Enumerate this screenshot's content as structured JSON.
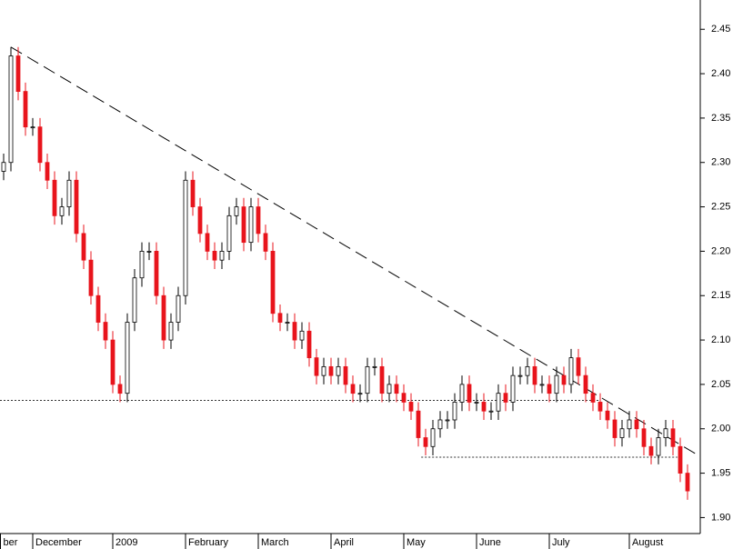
{
  "chart_data": {
    "type": "candlestick",
    "open": [
      2.29,
      2.3,
      2.42,
      2.38,
      2.34,
      2.34,
      2.3,
      2.28,
      2.24,
      2.25,
      2.28,
      2.22,
      2.19,
      2.15,
      2.12,
      2.1,
      2.05,
      2.04,
      2.12,
      2.17,
      2.2,
      2.2,
      2.15,
      2.1,
      2.12,
      2.15,
      2.28,
      2.25,
      2.22,
      2.2,
      2.19,
      2.2,
      2.24,
      2.25,
      2.21,
      2.25,
      2.22,
      2.2,
      2.13,
      2.12,
      2.12,
      2.1,
      2.11,
      2.08,
      2.06,
      2.07,
      2.06,
      2.07,
      2.05,
      2.04,
      2.04,
      2.07,
      2.07,
      2.04,
      2.05,
      2.04,
      2.03,
      2.02,
      1.99,
      1.98,
      2.0,
      2.01,
      2.01,
      2.03,
      2.05,
      2.03,
      2.03,
      2.02,
      2.02,
      2.04,
      2.03,
      2.06,
      2.06,
      2.07,
      2.05,
      2.05,
      2.04,
      2.06,
      2.05,
      2.08,
      2.06,
      2.04,
      2.03,
      2.02,
      2.01,
      1.99,
      2.0,
      2.01,
      2.0,
      1.98,
      1.97,
      1.99,
      2.0,
      1.98,
      1.95
    ],
    "high": [
      2.31,
      2.43,
      2.43,
      2.39,
      2.35,
      2.35,
      2.31,
      2.29,
      2.26,
      2.29,
      2.29,
      2.23,
      2.2,
      2.16,
      2.13,
      2.11,
      2.06,
      2.13,
      2.18,
      2.21,
      2.21,
      2.21,
      2.16,
      2.13,
      2.16,
      2.29,
      2.29,
      2.26,
      2.23,
      2.21,
      2.21,
      2.25,
      2.26,
      2.26,
      2.26,
      2.26,
      2.23,
      2.21,
      2.14,
      2.13,
      2.13,
      2.12,
      2.12,
      2.09,
      2.08,
      2.08,
      2.08,
      2.08,
      2.06,
      2.05,
      2.08,
      2.08,
      2.08,
      2.06,
      2.06,
      2.05,
      2.04,
      2.03,
      2.0,
      2.01,
      2.02,
      2.02,
      2.04,
      2.06,
      2.06,
      2.04,
      2.04,
      2.03,
      2.05,
      2.05,
      2.07,
      2.07,
      2.08,
      2.08,
      2.06,
      2.06,
      2.07,
      2.07,
      2.09,
      2.09,
      2.07,
      2.05,
      2.04,
      2.03,
      2.02,
      2.01,
      2.02,
      2.02,
      2.01,
      1.99,
      2.0,
      2.01,
      2.01,
      1.99,
      1.96
    ],
    "low": [
      2.28,
      2.29,
      2.37,
      2.33,
      2.33,
      2.29,
      2.27,
      2.23,
      2.23,
      2.24,
      2.21,
      2.18,
      2.14,
      2.11,
      2.09,
      2.04,
      2.03,
      2.03,
      2.11,
      2.16,
      2.19,
      2.14,
      2.09,
      2.09,
      2.11,
      2.14,
      2.24,
      2.21,
      2.19,
      2.18,
      2.18,
      2.19,
      2.23,
      2.2,
      2.2,
      2.21,
      2.19,
      2.12,
      2.11,
      2.11,
      2.09,
      2.09,
      2.07,
      2.05,
      2.05,
      2.05,
      2.05,
      2.04,
      2.03,
      2.03,
      2.03,
      2.06,
      2.03,
      2.03,
      2.03,
      2.02,
      2.01,
      1.98,
      1.97,
      1.97,
      1.99,
      2.0,
      2.0,
      2.02,
      2.02,
      2.02,
      2.01,
      2.01,
      2.01,
      2.02,
      2.02,
      2.05,
      2.05,
      2.04,
      2.04,
      2.03,
      2.03,
      2.04,
      2.04,
      2.05,
      2.03,
      2.02,
      2.01,
      2.0,
      1.98,
      1.98,
      1.99,
      1.99,
      1.97,
      1.96,
      1.96,
      1.98,
      1.97,
      1.94,
      1.92
    ],
    "close": [
      2.3,
      2.42,
      2.38,
      2.34,
      2.34,
      2.3,
      2.28,
      2.24,
      2.25,
      2.28,
      2.22,
      2.19,
      2.15,
      2.12,
      2.1,
      2.05,
      2.04,
      2.12,
      2.17,
      2.2,
      2.2,
      2.15,
      2.1,
      2.12,
      2.15,
      2.28,
      2.25,
      2.22,
      2.2,
      2.19,
      2.2,
      2.24,
      2.25,
      2.21,
      2.25,
      2.22,
      2.2,
      2.13,
      2.12,
      2.12,
      2.1,
      2.11,
      2.08,
      2.06,
      2.07,
      2.06,
      2.07,
      2.05,
      2.04,
      2.04,
      2.07,
      2.07,
      2.04,
      2.05,
      2.04,
      2.03,
      2.02,
      1.99,
      1.98,
      2.0,
      2.01,
      2.01,
      2.03,
      2.05,
      2.03,
      2.03,
      2.02,
      2.02,
      2.04,
      2.03,
      2.06,
      2.06,
      2.07,
      2.05,
      2.05,
      2.04,
      2.06,
      2.05,
      2.08,
      2.06,
      2.04,
      2.03,
      2.02,
      2.01,
      1.99,
      2.0,
      2.01,
      2.0,
      1.98,
      1.97,
      1.99,
      2.0,
      1.98,
      1.95,
      1.93
    ],
    "up_color": "#ffffff",
    "down_color": "#e8141c",
    "xlim": [
      -0.5,
      95.5
    ],
    "xticks": [
      {
        "value": -0.5,
        "label": "ber"
      },
      {
        "value": 4,
        "label": "December"
      },
      {
        "value": 15,
        "label": "2009"
      },
      {
        "value": 25,
        "label": "February"
      },
      {
        "value": 35,
        "label": "March"
      },
      {
        "value": 45,
        "label": "April"
      },
      {
        "value": 55,
        "label": "May"
      },
      {
        "value": 65,
        "label": "June"
      },
      {
        "value": 75,
        "label": "July"
      },
      {
        "value": 86,
        "label": "August"
      }
    ],
    "ylim": [
      1.882,
      2.483
    ],
    "yticks": [
      {
        "value": 1.9,
        "label": "1.90"
      },
      1.95,
      {
        "value": 2.0,
        "label": "2.00"
      },
      2.05,
      {
        "value": 2.1,
        "label": "2.10"
      },
      2.15,
      {
        "value": 2.2,
        "label": "2.20"
      },
      2.25,
      {
        "value": 2.3,
        "label": "2.30"
      },
      2.35,
      {
        "value": 2.4,
        "label": "2.40"
      },
      2.45
    ],
    "trendline": {
      "x": [
        1,
        95.5
      ],
      "y": [
        2.43,
        1.97
      ]
    },
    "support_lines": [
      {
        "x": [
          -0.5,
          82
        ],
        "y": 2.032
      },
      {
        "x": [
          57.4,
          92.6
        ],
        "y": 1.968
      }
    ]
  }
}
